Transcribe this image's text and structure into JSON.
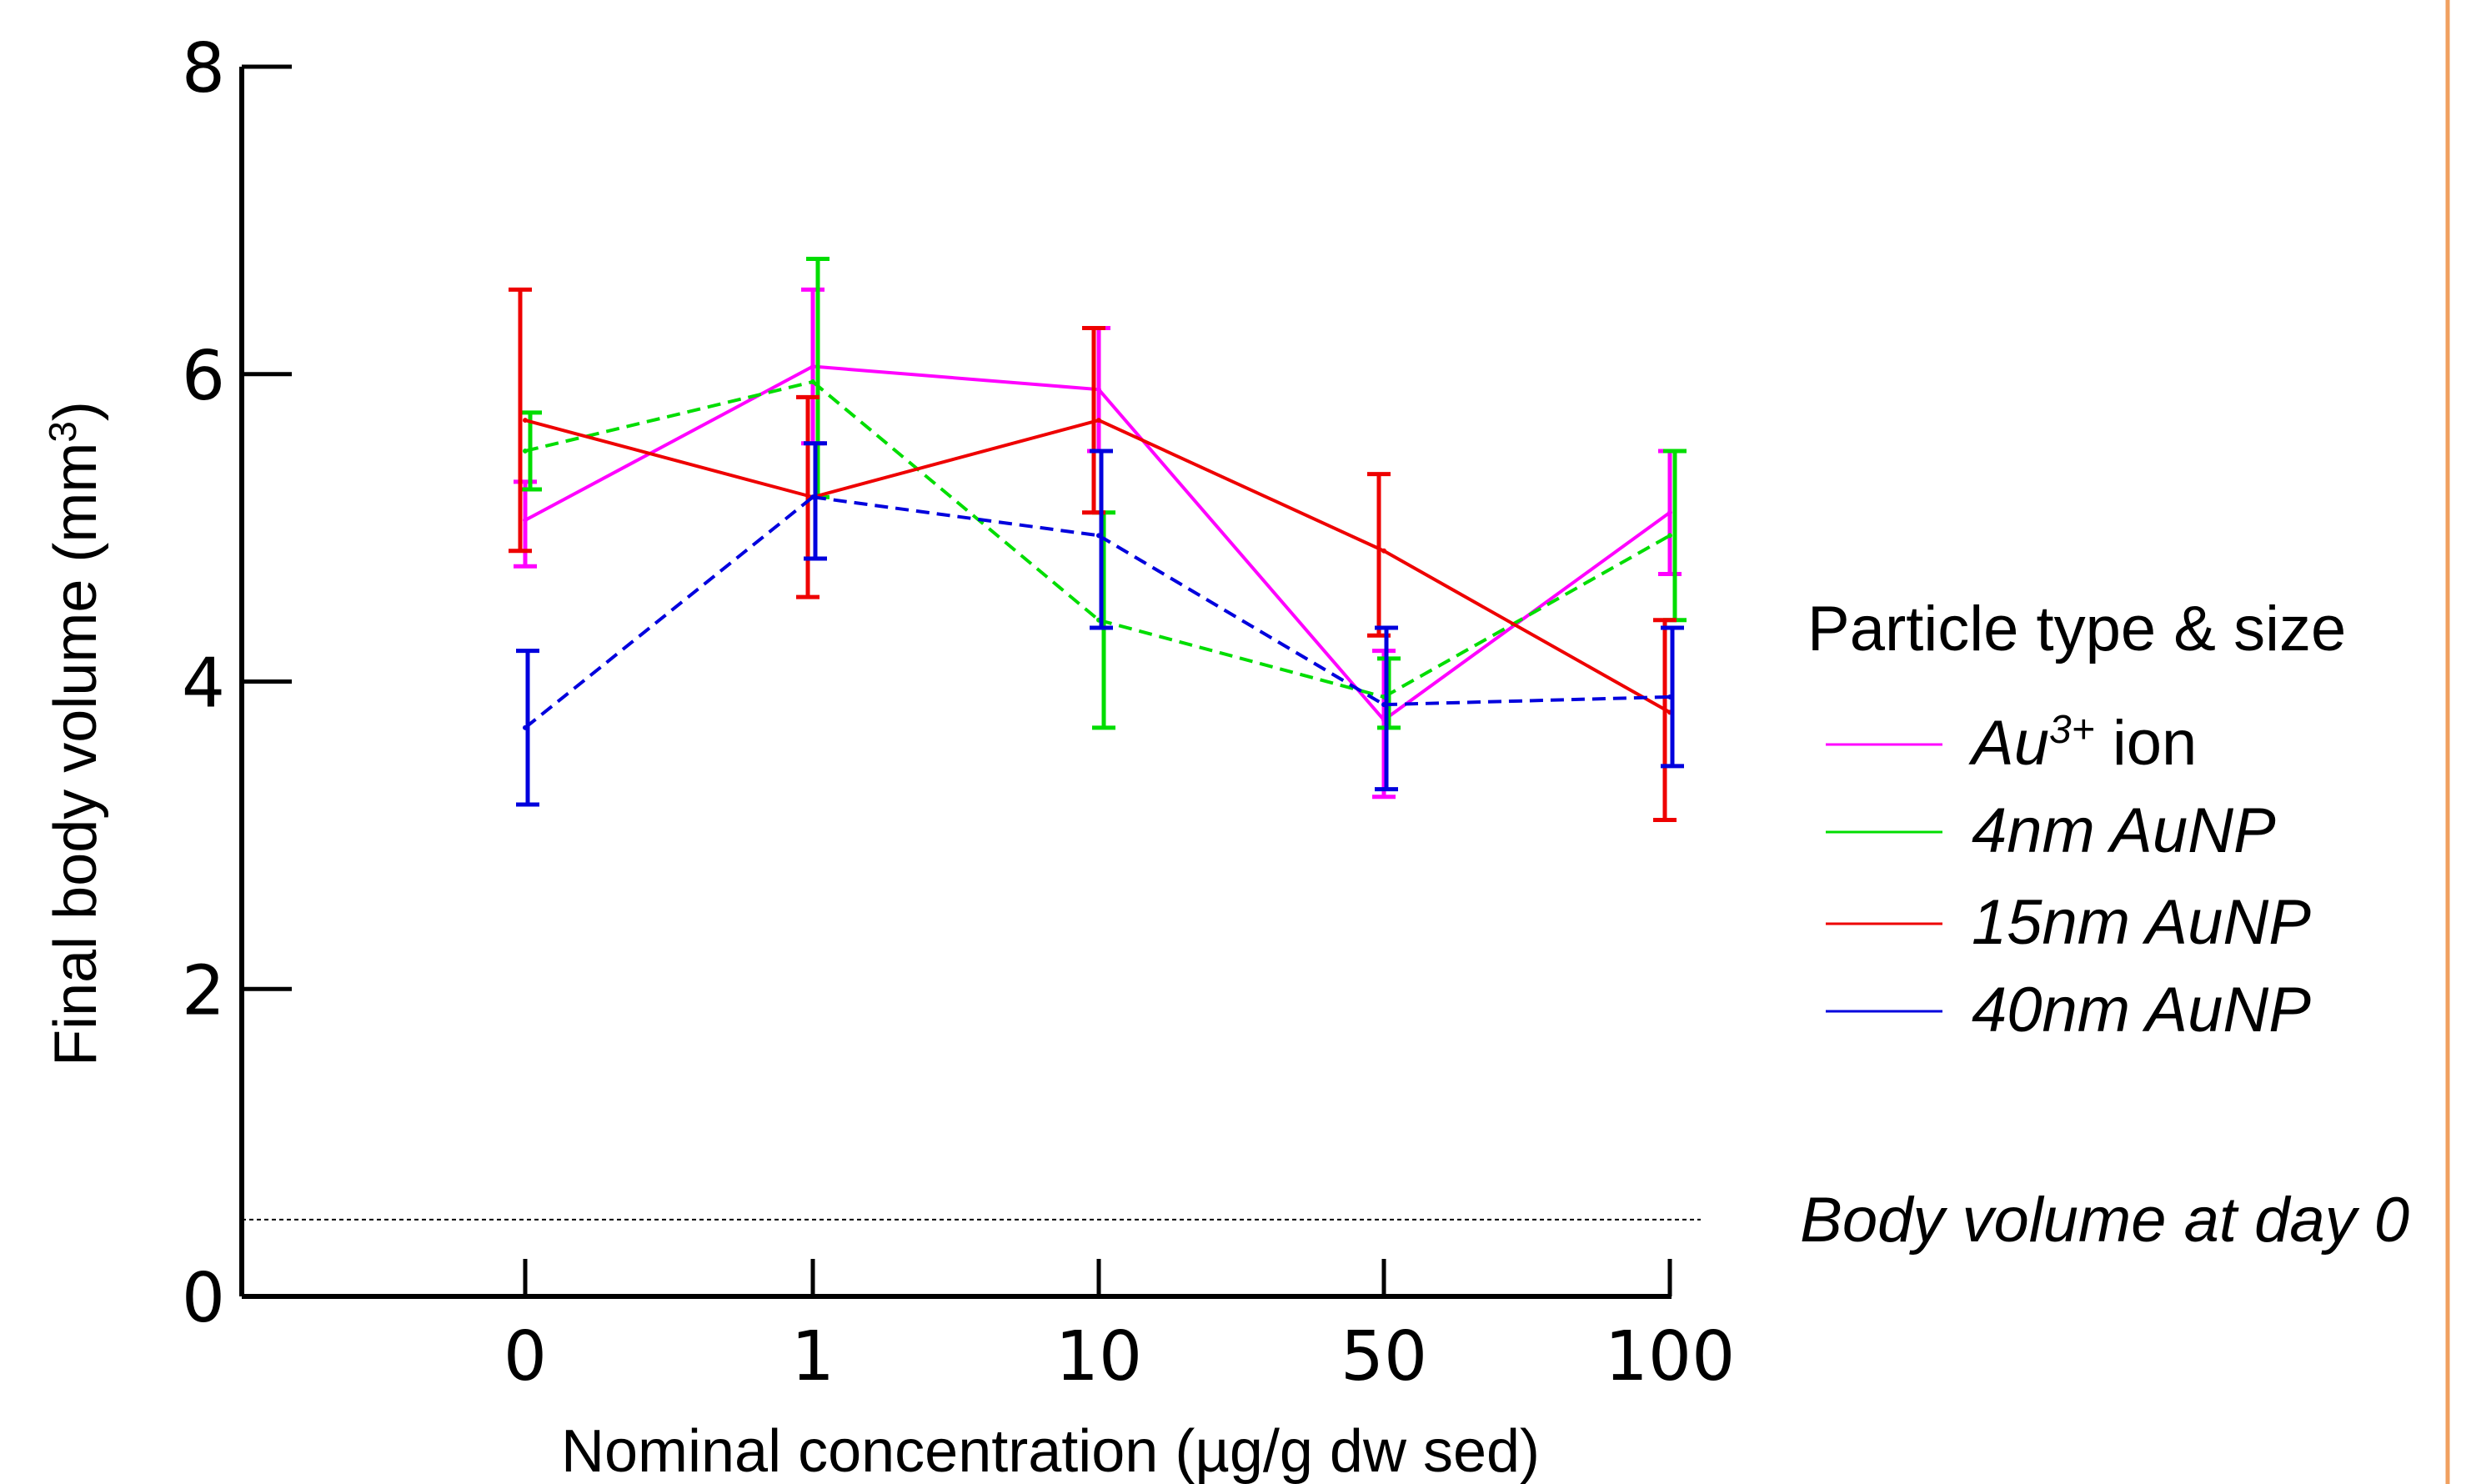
{
  "colors": {
    "accent_border": "#f0a060",
    "axis": "#000000"
  },
  "chart_data": {
    "type": "line",
    "xlabel": "Nominal concentration (µg/g dw sed)",
    "ylabel": "Final body volume (mm",
    "ylabel_sup": "3",
    "ylabel_suffix": ")",
    "categories": [
      "0",
      "1",
      "10",
      "50",
      "100"
    ],
    "y_ticks": [
      "0",
      "2",
      "4",
      "6",
      "8"
    ],
    "ylim": [
      0,
      8
    ],
    "legend_title": "Particle type & size",
    "legend_position": "right",
    "reference_line": {
      "label": "Body volume  at day 0",
      "value": 0.5
    },
    "series": [
      {
        "name": "Au",
        "name_sup": "3+",
        "name_suffix": " ion",
        "color": "#ff00ff",
        "dash": "solid",
        "values": [
          5.05,
          6.05,
          5.9,
          3.75,
          5.1
        ],
        "err_low": [
          4.75,
          5.55,
          5.5,
          3.25,
          4.7
        ],
        "err_high": [
          5.3,
          6.55,
          6.3,
          4.2,
          5.5
        ]
      },
      {
        "name": "4nm AuNP",
        "color": "#00dd00",
        "dash": "dashed",
        "values": [
          5.5,
          5.95,
          4.4,
          3.9,
          4.95
        ],
        "err_low": [
          5.25,
          5.2,
          3.7,
          3.7,
          4.4
        ],
        "err_high": [
          5.75,
          6.75,
          5.1,
          4.15,
          5.5
        ]
      },
      {
        "name": "15nm AuNP",
        "color": "#ee0000",
        "dash": "solid",
        "values": [
          5.7,
          5.2,
          5.7,
          4.85,
          3.8
        ],
        "err_low": [
          4.85,
          4.55,
          5.1,
          4.3,
          3.1
        ],
        "err_high": [
          6.55,
          5.85,
          6.3,
          5.35,
          4.4
        ]
      },
      {
        "name": "40nm AuNP",
        "color": "#0000dd",
        "dash": "dashed",
        "values": [
          3.7,
          5.2,
          4.95,
          3.85,
          3.9
        ],
        "err_low": [
          3.2,
          4.8,
          4.35,
          3.3,
          3.45
        ],
        "err_high": [
          4.2,
          5.55,
          5.5,
          4.35,
          4.35
        ]
      }
    ]
  }
}
